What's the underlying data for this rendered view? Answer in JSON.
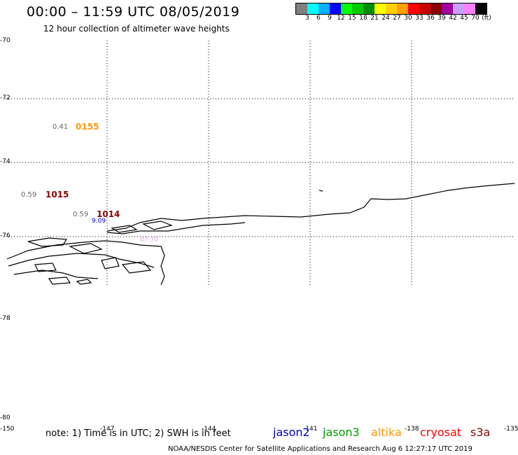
{
  "title": "00:00 – 11:59 UTC 08/05/2019",
  "subtitle": "12 hour collection of altimeter wave heights",
  "legend": {
    "colors": [
      "#808080",
      "#00ffff",
      "#00b0ff",
      "#0000ff",
      "#00ff00",
      "#00c800",
      "#008c00",
      "#ffff00",
      "#ffd000",
      "#ffa000",
      "#ff0000",
      "#c80000",
      "#8c0000",
      "#a000a0",
      "#c8a0ff",
      "#ff80ff",
      "#000000"
    ],
    "labels": [
      "3",
      "6",
      "9",
      "12",
      "15",
      "18",
      "21",
      "24",
      "27",
      "30",
      "33",
      "36",
      "39",
      "42",
      "45",
      "70",
      "(ft)"
    ]
  },
  "y_axis_labels": [
    "-70",
    "-72",
    "-74",
    "-76",
    "-78",
    "-80"
  ],
  "x_axis_labels": [
    "-150",
    "-147",
    "-144",
    "-141",
    "-138",
    "-135"
  ],
  "observations": [
    {
      "value": "0.41",
      "time": "0155",
      "color": "#ff9900"
    },
    {
      "value": "0.59",
      "time": "1015",
      "color": "#8b0000"
    },
    {
      "value": "0.59",
      "time": "1014",
      "color": "#8b0000"
    }
  ],
  "minor_labels": [
    {
      "text": "9.09",
      "color": "#0000cc"
    },
    {
      "text": "07:70",
      "color": "#e8a0e8"
    }
  ],
  "note": "note: 1) Time is in UTC; 2) SWH is in feet",
  "satellites": [
    {
      "name": "jason2",
      "color": "#0000cc"
    },
    {
      "name": "jason3",
      "color": "#009900"
    },
    {
      "name": "altika",
      "color": "#ff9900"
    },
    {
      "name": "cryosat",
      "color": "#ff0000"
    },
    {
      "name": "s3a",
      "color": "#8b0000"
    }
  ],
  "footer": "NOAA/NESDIS Center for Satellite Applications and Research    Aug  6 12:27:17 UTC 2019"
}
